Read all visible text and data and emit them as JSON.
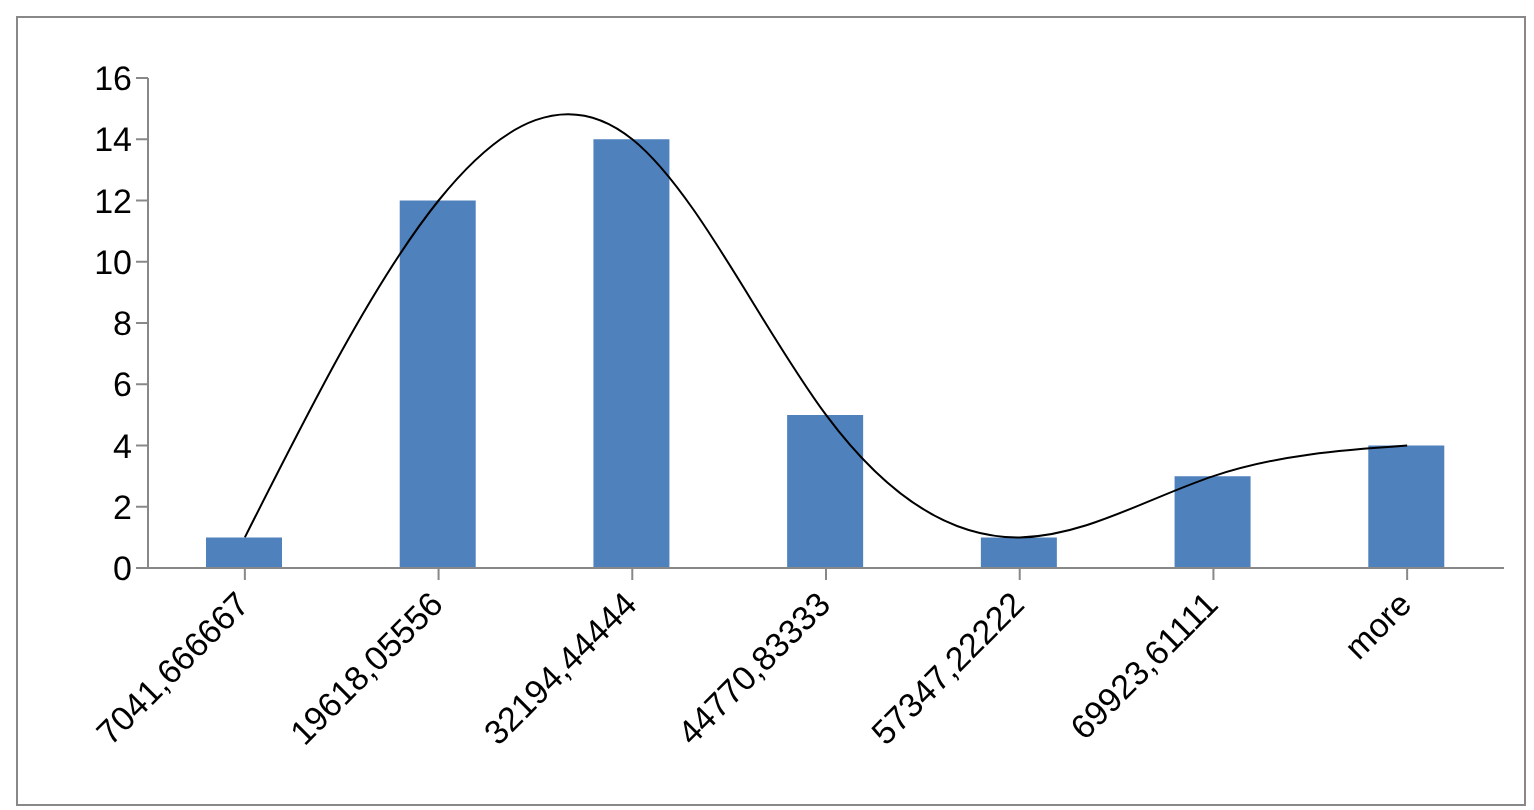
{
  "chart_data": {
    "type": "bar",
    "categories": [
      "7041,666667",
      "19618,05556",
      "32194,44444",
      "44770,83333",
      "57347,22222",
      "69923,61111",
      "more"
    ],
    "series": [
      {
        "color": "#4f81bd",
        "values": [
          1,
          12,
          14,
          5,
          1,
          3,
          4
        ]
      },
      {
        "type": "line",
        "color": "#000000",
        "values": [
          1,
          12,
          14,
          5,
          1,
          3,
          4
        ]
      }
    ],
    "ylim": [
      0,
      16
    ],
    "yticks": [
      0,
      2,
      4,
      6,
      8,
      10,
      12,
      14,
      16
    ],
    "grid": false,
    "legend": false,
    "marker": "none",
    "line_style": "solid"
  }
}
